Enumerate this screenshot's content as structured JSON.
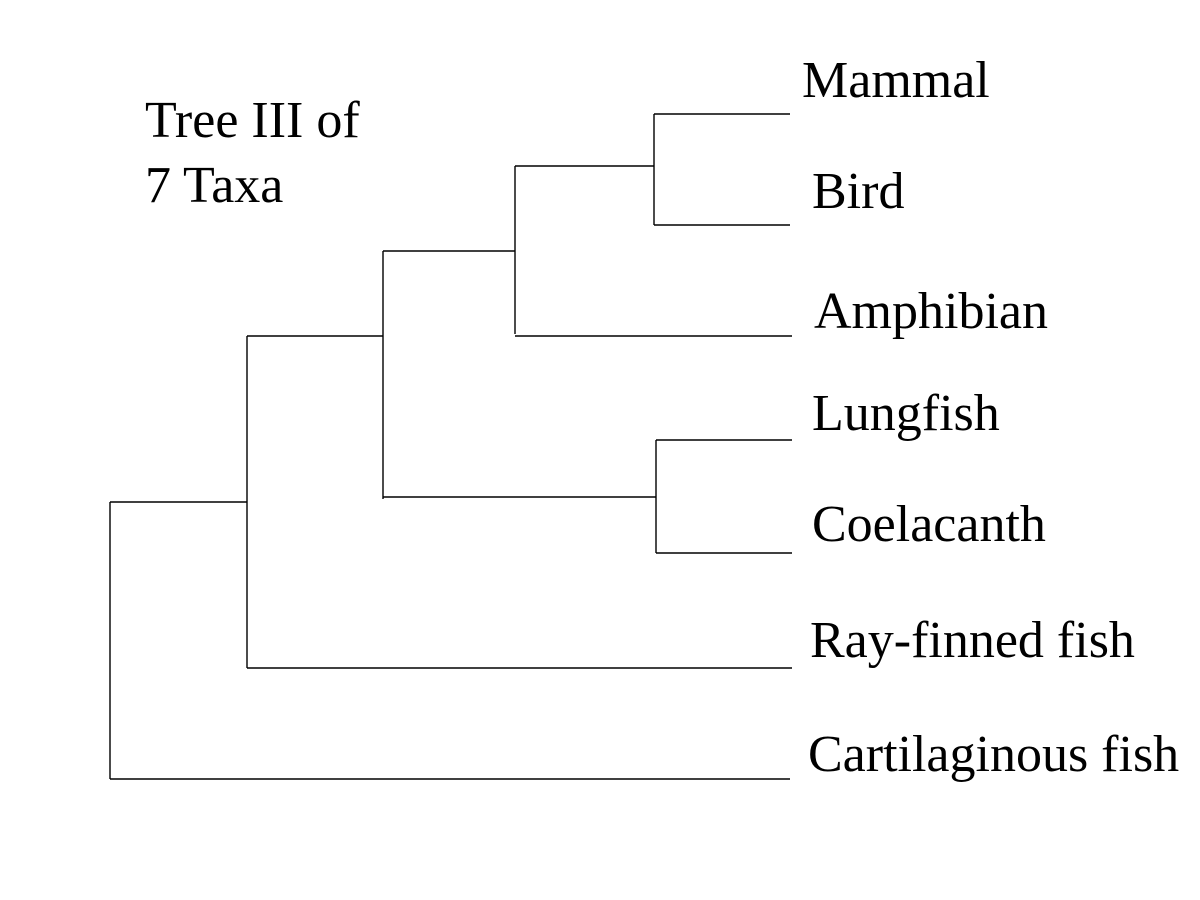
{
  "title": {
    "lines": [
      "Tree III of",
      "7 Taxa"
    ]
  },
  "taxa": [
    "Mammal",
    "Bird",
    "Amphibian",
    "Lungfish",
    "Coelacanth",
    "Ray-finned fish",
    "Cartilaginous fish"
  ]
}
